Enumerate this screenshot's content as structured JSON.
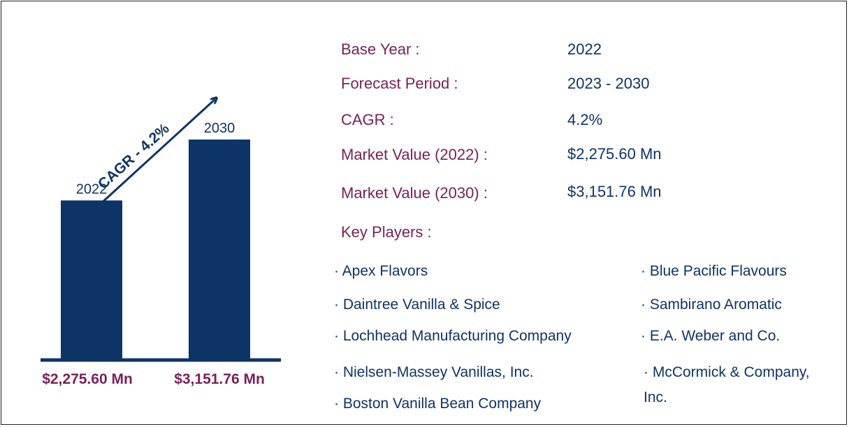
{
  "chart_data": {
    "type": "bar",
    "categories": [
      "2022",
      "2030"
    ],
    "values": [
      2275.6,
      3151.76
    ],
    "value_labels": [
      "$2,275.60 Mn",
      "$3,151.76 Mn"
    ],
    "annotation": "CAGR - 4.2%",
    "colors": {
      "bar": "#0d3466",
      "value_label": "#7a1f5a",
      "axis": "#0d3466"
    }
  },
  "info": {
    "rows": [
      {
        "label": "Base Year :",
        "value": "2022"
      },
      {
        "label": "Forecast Period :",
        "value": "2023 - 2030"
      },
      {
        "label": "CAGR :",
        "value": "4.2%"
      },
      {
        "label": "Market Value (2022) :",
        "value": "$2,275.60 Mn"
      },
      {
        "label": "Market Value (2030) :",
        "value": "$3,151.76 Mn"
      }
    ],
    "key_players_title": "Key Players :",
    "players_left": [
      "· Apex Flavors",
      "· Daintree Vanilla & Spice",
      "· Lochhead Manufacturing Company",
      "· Nielsen-Massey Vanillas, Inc.",
      "· Boston Vanilla Bean Company"
    ],
    "players_right": [
      "· Blue Pacific Flavours",
      "· Sambirano Aromatic",
      "· E.A. Weber and Co.",
      "· McCormick & Company, Inc."
    ]
  }
}
